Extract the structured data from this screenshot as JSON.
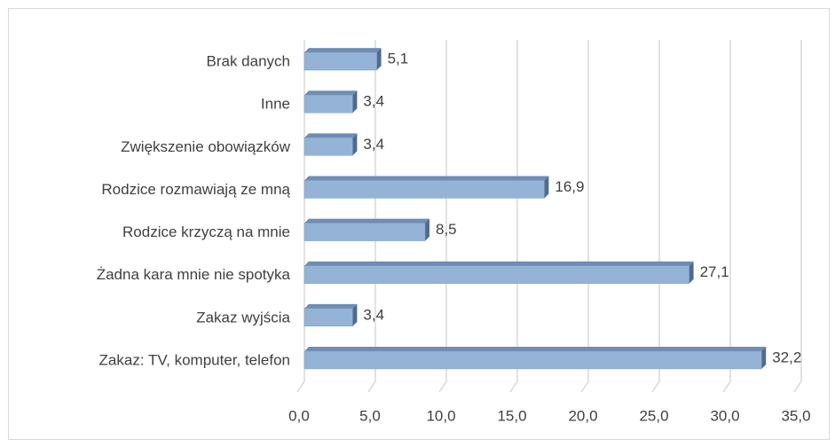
{
  "chart_data": {
    "type": "bar",
    "orientation": "horizontal",
    "categories": [
      "Brak danych",
      "Inne",
      "Zwiększenie obowiązków",
      "Rodzice rozmawiają ze mną",
      "Rodzice krzyczą na mnie",
      "Żadna kara mnie nie spotyka",
      "Zakaz wyjścia",
      "Zakaz: TV, komputer, telefon"
    ],
    "values": [
      5.1,
      3.4,
      3.4,
      16.9,
      8.5,
      27.1,
      3.4,
      32.2
    ],
    "value_labels": [
      "5,1",
      "3,4",
      "3,4",
      "16,9",
      "8,5",
      "27,1",
      "3,4",
      "32,2"
    ],
    "color": "#95b3d7",
    "xlim": [
      0,
      35
    ],
    "xticks": [
      {
        "value": 0,
        "label": "0,0"
      },
      {
        "value": 5,
        "label": "5,0"
      },
      {
        "value": 10,
        "label": "10,0"
      },
      {
        "value": 15,
        "label": "15,0"
      },
      {
        "value": 20,
        "label": "20,0"
      },
      {
        "value": 25,
        "label": "25,0"
      },
      {
        "value": 30,
        "label": "30,0"
      },
      {
        "value": 35,
        "label": "35,0"
      }
    ],
    "grid": true
  }
}
